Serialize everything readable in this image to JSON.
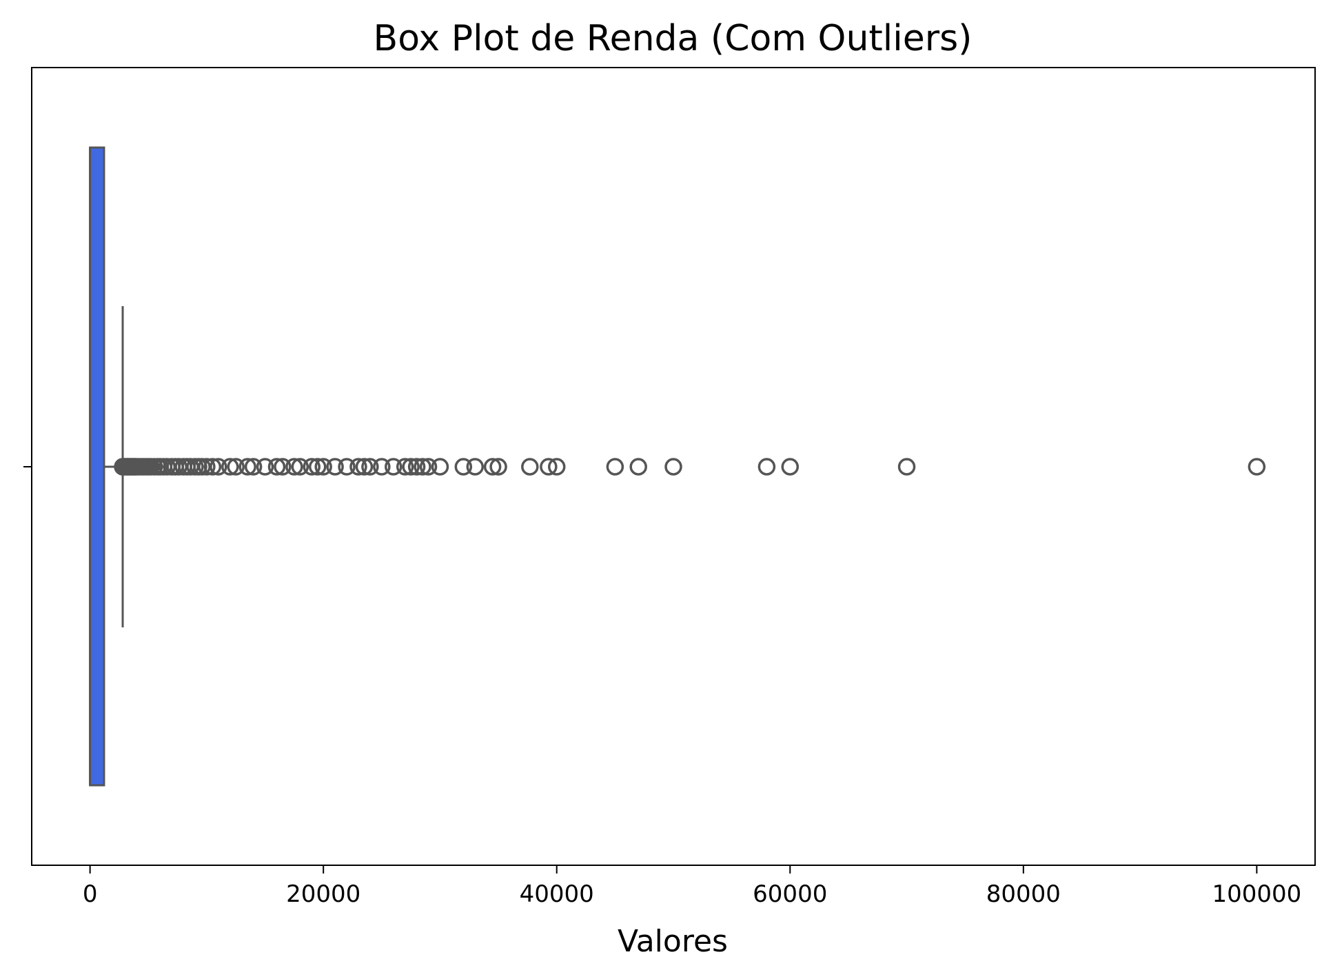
{
  "chart_data": {
    "type": "box",
    "title": "Box Plot de Renda (Com Outliers)",
    "xlabel": "Valores",
    "ylabel": "",
    "xlim": [
      -5000,
      105000
    ],
    "xticks": [
      0,
      20000,
      40000,
      60000,
      80000,
      100000
    ],
    "xtick_labels": [
      "0",
      "20000",
      "40000",
      "60000",
      "80000",
      "100000"
    ],
    "grid": false,
    "box": {
      "min": 0,
      "q1": 0,
      "median": 0,
      "q3": 1200,
      "whisker_low": 0,
      "whisker_high": 2800
    },
    "outliers": [
      2800,
      2900,
      3000,
      3100,
      3200,
      3300,
      3400,
      3500,
      3600,
      3700,
      3800,
      3900,
      4000,
      4200,
      4400,
      4600,
      4800,
      5000,
      5200,
      5500,
      5800,
      6000,
      6300,
      6600,
      7000,
      7300,
      7600,
      8000,
      8300,
      8600,
      9000,
      9300,
      9600,
      10000,
      10500,
      11000,
      12000,
      12500,
      13500,
      14000,
      15000,
      16000,
      16500,
      17500,
      18000,
      19000,
      19500,
      20000,
      21000,
      22000,
      23000,
      23500,
      24000,
      25000,
      26000,
      27000,
      27500,
      28000,
      28500,
      29000,
      30000,
      32000,
      33000,
      34500,
      35000,
      37700,
      39300,
      40000,
      45000,
      47000,
      50000,
      58000,
      60000,
      70000,
      100000
    ],
    "colors": {
      "box_fill": "#4169e1",
      "box_edge": "#555555",
      "outlier_edge": "#555555",
      "axes": "#000000"
    }
  }
}
